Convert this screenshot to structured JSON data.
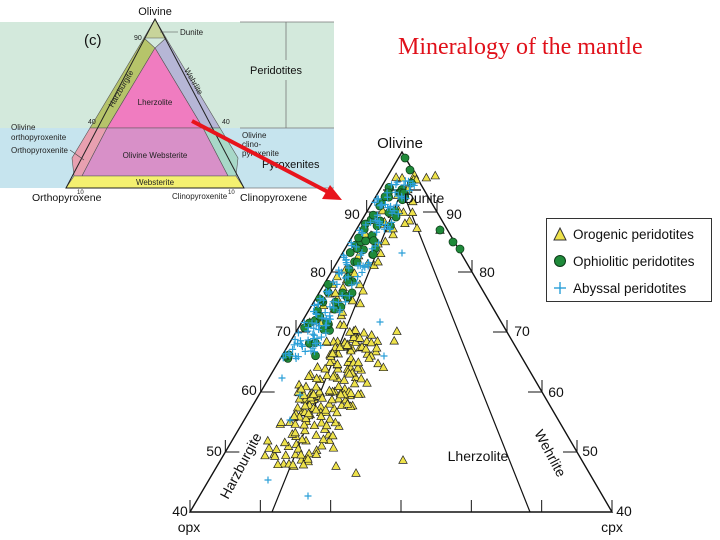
{
  "title": "Mineralogy of the mantle",
  "inset": {
    "panel_label": "(c)",
    "apex_top": "Olivine",
    "apex_left": "Orthopyroxene",
    "apex_right": "Clinopyroxene",
    "tick_90": "90",
    "tick_40_left": "40",
    "tick_40_right": "40",
    "tick_10_left": "10",
    "tick_10_right": "10",
    "field_dunite": "Dunite",
    "field_harzburgite": "Harzburgite",
    "field_wehrlite": "Wehrlite",
    "field_lherzolite": "Lherzolite",
    "field_olivine_websterite": "Olivine Websterite",
    "field_websterite": "Websterite",
    "side_ol_opx_line1": "Olivine",
    "side_ol_opx_line2": "orthopyroxenite",
    "side_opx": "Orthopyroxenite",
    "side_ol_cpx_line1": "Olivine",
    "side_ol_cpx_line2": "clino-",
    "side_ol_cpx_line3": "pyroxenite",
    "side_cpx": "Clinopyroxenite",
    "group_peridotites": "Peridotites",
    "group_pyroxenites": "Pyroxenites",
    "colors": {
      "dunite": "#c8d49a",
      "harzburgite": "#b6c46a",
      "wehrlite": "#b6b6d6",
      "lherzolite": "#f07cc0",
      "websterite_band": "#d890c8",
      "websterite": "#f4f070",
      "side_left": "#e8e070",
      "side_right": "#a8d8c8",
      "bg_upper": "#d3e9dc",
      "bg_lower": "#c6e4ee"
    }
  },
  "main": {
    "apex_top": "Olivine",
    "label_opx": "opx",
    "label_cpx": "cpx",
    "field_dunite": "Dunite",
    "field_harzburgite": "Harzburgite",
    "field_lherzolite": "Lherzolite",
    "field_wehrlite": "Wehrlite",
    "left_ticks": [
      "90",
      "80",
      "70",
      "60",
      "50",
      "40"
    ],
    "right_ticks": [
      "90",
      "80",
      "70",
      "60",
      "50",
      "40"
    ]
  },
  "legend": {
    "orogenic": "Orogenic peridotites",
    "ophiolitic": "Ophiolitic peridotites",
    "abyssal": "Abyssal peridotites"
  },
  "colors": {
    "title": "#e0101a",
    "arrow": "#e8141c",
    "orogenic_fill": "#eee24a",
    "ophiolitic_fill": "#1f8a3a",
    "abyssal": "#2a9fd8"
  }
}
